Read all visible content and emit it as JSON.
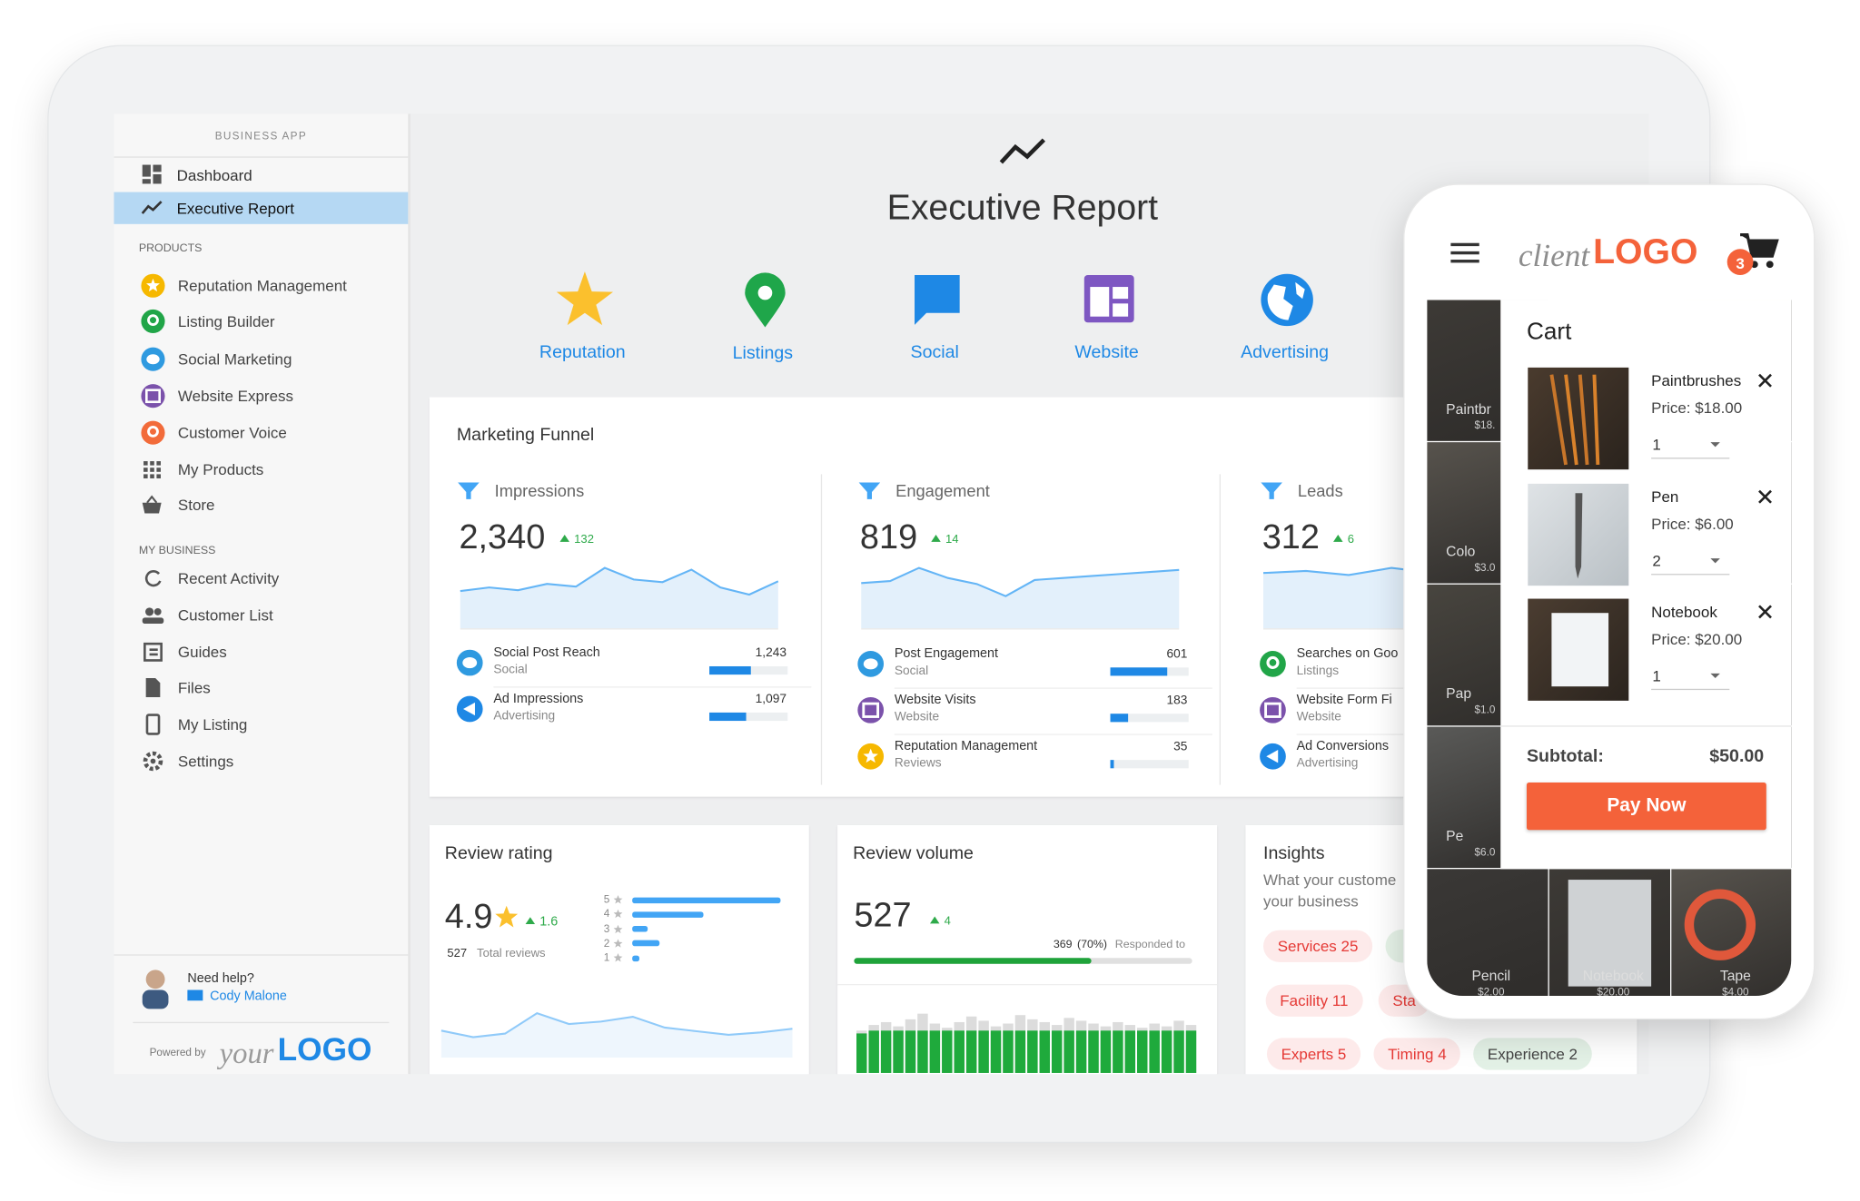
{
  "sidebar": {
    "section_label": "BUSINESS APP",
    "nav": [
      "Dashboard",
      "Executive Report"
    ],
    "products_label": "PRODUCTS",
    "products": [
      "Reputation Management",
      "Listing Builder",
      "Social Marketing",
      "Website Express",
      "Customer Voice",
      "My Products",
      "Store"
    ],
    "my_business_label": "MY BUSINESS",
    "my_business": [
      "Recent Activity",
      "Customer List",
      "Guides",
      "Files",
      "My Listing",
      "Settings"
    ],
    "help": {
      "title": "Need help?",
      "contact": "Cody Malone"
    },
    "powered_by": "Powered by",
    "logo": {
      "prefix": "your",
      "name": "LOGO"
    }
  },
  "header": {
    "title": "Executive Report",
    "tabs": [
      "Reputation",
      "Listings",
      "Social",
      "Website",
      "Advertising"
    ]
  },
  "marketing_funnel": {
    "title": "Marketing Funnel",
    "stages": [
      {
        "name": "Impressions",
        "value": "2,340",
        "change": "132",
        "trend": [
          42,
          46,
          43,
          50,
          47,
          68,
          55,
          52,
          66,
          46,
          38,
          53
        ],
        "metrics": [
          {
            "name": "Social Post Reach",
            "source": "Social",
            "value": "1,243"
          },
          {
            "name": "Ad Impressions",
            "source": "Advertising",
            "value": "1,097"
          }
        ]
      },
      {
        "name": "Engagement",
        "value": "819",
        "change": "14",
        "trend": [
          45,
          47,
          60,
          50,
          44,
          32,
          48,
          50,
          52,
          54,
          56,
          58
        ],
        "metrics": [
          {
            "name": "Post Engagement",
            "source": "Social",
            "value": "601"
          },
          {
            "name": "Website Visits",
            "source": "Website",
            "value": "183"
          },
          {
            "name": "Reputation Management",
            "source": "Reviews",
            "value": "35"
          }
        ]
      },
      {
        "name": "Leads",
        "value": "312",
        "change": "6",
        "trend": [
          55,
          57,
          53,
          60,
          55,
          48
        ],
        "metrics": [
          {
            "name": "Searches on Goo",
            "source": "Listings"
          },
          {
            "name": "Website Form Fi",
            "source": "Website"
          },
          {
            "name": "Ad Conversions",
            "source": "Advertising"
          }
        ]
      }
    ]
  },
  "review_rating": {
    "title": "Review rating",
    "rating": "4.9",
    "change": "1.6",
    "total": "527",
    "total_label": "Total reviews",
    "star_labels": [
      "5",
      "4",
      "3",
      "2",
      "1"
    ],
    "star_bars": [
      100,
      48,
      10,
      18,
      5
    ],
    "trend": [
      45,
      34,
      40,
      74,
      56,
      60,
      68,
      50,
      44,
      38,
      42,
      48
    ]
  },
  "review_volume": {
    "title": "Review volume",
    "value": "527",
    "change": "4",
    "responded": "369",
    "responded_pct": "(70%)",
    "responded_label": "Responded to",
    "bars_total": [
      30,
      34,
      36,
      33,
      38,
      42,
      35,
      32,
      36,
      40,
      37,
      33,
      35,
      41,
      38,
      36,
      34,
      39,
      37,
      35,
      33,
      36,
      34,
      32,
      35,
      33,
      37,
      34
    ],
    "bars_responded": [
      28,
      30,
      30,
      30,
      30,
      30,
      30,
      30,
      30,
      30,
      30,
      30,
      30,
      30,
      30,
      30,
      30,
      30,
      30,
      30,
      30,
      30,
      30,
      30,
      30,
      30,
      30,
      30
    ]
  },
  "insights": {
    "title": "Insights",
    "subtitle": [
      "What your custome",
      "your business"
    ],
    "tags": [
      {
        "text": "Services 25",
        "tone": "negative"
      },
      {
        "text": "Facility 11",
        "tone": "negative"
      },
      {
        "text": "Sta",
        "tone": "negative"
      },
      {
        "text": "Experts 5",
        "tone": "negative"
      },
      {
        "text": "Timing 4",
        "tone": "negative"
      },
      {
        "text": "Experience 2",
        "tone": "positive"
      }
    ]
  },
  "phone": {
    "logo": {
      "prefix": "client",
      "name": "LOGO"
    },
    "cart_count": "3",
    "cart_title": "Cart",
    "items": [
      {
        "name": "Paintbrushes",
        "price": "Price: $18.00",
        "qty": "1"
      },
      {
        "name": "Pen",
        "price": "Price: $6.00",
        "qty": "2"
      },
      {
        "name": "Notebook",
        "price": "Price: $20.00",
        "qty": "1"
      }
    ],
    "subtotal_label": "Subtotal:",
    "subtotal": "$50.00",
    "pay": "Pay Now",
    "side_tiles": [
      [
        "Paintbr",
        "$18."
      ],
      [
        "Colo",
        "$3.0"
      ],
      [
        "Pap",
        "$1.0"
      ],
      [
        "Pe",
        "$6.0"
      ]
    ],
    "bottom_tiles": [
      [
        "Pencil",
        "$2.00"
      ],
      [
        "Notebook",
        "$20.00"
      ],
      [
        "Tape",
        "$4.00"
      ]
    ]
  }
}
